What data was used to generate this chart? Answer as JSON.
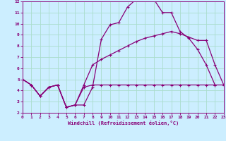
{
  "xlabel": "Windchill (Refroidissement éolien,°C)",
  "bg_color": "#cceeff",
  "grid_color": "#aaddcc",
  "line_color": "#880077",
  "xlim": [
    0,
    23
  ],
  "ylim": [
    2,
    12
  ],
  "xticks": [
    0,
    1,
    2,
    3,
    4,
    5,
    6,
    7,
    8,
    9,
    10,
    11,
    12,
    13,
    14,
    15,
    16,
    17,
    18,
    19,
    20,
    21,
    22,
    23
  ],
  "yticks": [
    2,
    3,
    4,
    5,
    6,
    7,
    8,
    9,
    10,
    11,
    12
  ],
  "curve1_x": [
    0,
    1,
    2,
    3,
    4,
    5,
    6,
    7,
    8,
    9,
    10,
    11,
    12,
    13,
    14,
    15,
    16,
    17,
    18,
    19,
    20,
    21,
    22
  ],
  "curve1_y": [
    5.0,
    4.5,
    3.5,
    4.3,
    4.5,
    2.5,
    2.7,
    2.7,
    4.3,
    8.6,
    9.9,
    10.1,
    11.5,
    12.2,
    12.2,
    12.2,
    11.0,
    11.0,
    9.3,
    8.7,
    7.7,
    6.3,
    4.5
  ],
  "curve2_x": [
    0,
    1,
    2,
    3,
    4,
    5,
    6,
    7,
    8,
    9,
    10,
    11,
    12,
    13,
    14,
    15,
    16,
    17,
    18,
    19,
    20,
    21,
    22,
    23
  ],
  "curve2_y": [
    5.0,
    4.5,
    3.5,
    4.3,
    4.5,
    2.5,
    2.7,
    4.5,
    6.3,
    6.8,
    7.2,
    7.6,
    8.0,
    8.4,
    8.7,
    8.9,
    9.1,
    9.3,
    9.1,
    8.8,
    8.5,
    8.5,
    6.3,
    4.5
  ],
  "curve3_x": [
    0,
    1,
    2,
    3,
    4,
    5,
    6,
    7,
    8,
    9,
    10,
    11,
    12,
    13,
    14,
    15,
    16,
    17,
    18,
    19,
    20,
    21,
    22,
    23
  ],
  "curve3_y": [
    5.0,
    4.5,
    3.5,
    4.3,
    4.5,
    2.5,
    2.7,
    4.3,
    4.5,
    4.5,
    4.5,
    4.5,
    4.5,
    4.5,
    4.5,
    4.5,
    4.5,
    4.5,
    4.5,
    4.5,
    4.5,
    4.5,
    4.5,
    4.5
  ]
}
